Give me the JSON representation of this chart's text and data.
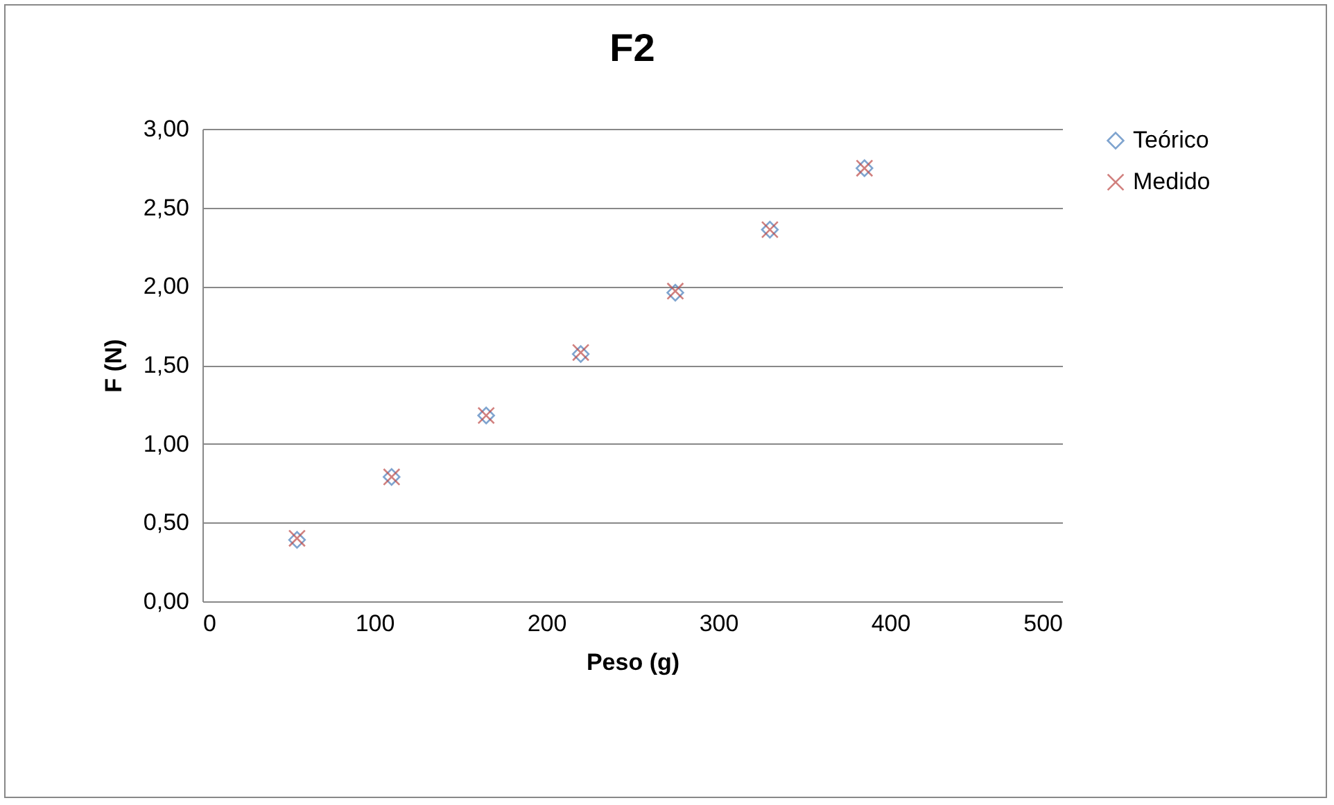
{
  "chart_data": {
    "type": "scatter",
    "title": "F2",
    "xlabel": "Peso (g)",
    "ylabel": "F (N)",
    "x": [
      55,
      110,
      165,
      220,
      275,
      330,
      385
    ],
    "series": [
      {
        "name": "Teórico",
        "color": "#4a7ebb",
        "marker": "diamond",
        "values": [
          0.39,
          0.79,
          1.18,
          1.57,
          1.96,
          2.36,
          2.75
        ]
      },
      {
        "name": "Medido",
        "color": "#be4b48",
        "marker": "cross",
        "values": [
          0.4,
          0.79,
          1.18,
          1.58,
          1.97,
          2.36,
          2.75
        ]
      }
    ],
    "xlim": [
      0,
      500
    ],
    "xticks": [
      0,
      100,
      200,
      300,
      400,
      500
    ],
    "ylim": [
      0,
      3
    ],
    "yticks": [
      {
        "value": 0,
        "label": "0,00"
      },
      {
        "value": 0.5,
        "label": "0,50"
      },
      {
        "value": 1,
        "label": "1,00"
      },
      {
        "value": 1.5,
        "label": "1,50"
      },
      {
        "value": 2,
        "label": "2,00"
      },
      {
        "value": 2.5,
        "label": "2,50"
      },
      {
        "value": 3,
        "label": "3,00"
      }
    ],
    "grid": "y",
    "legend": "right"
  }
}
